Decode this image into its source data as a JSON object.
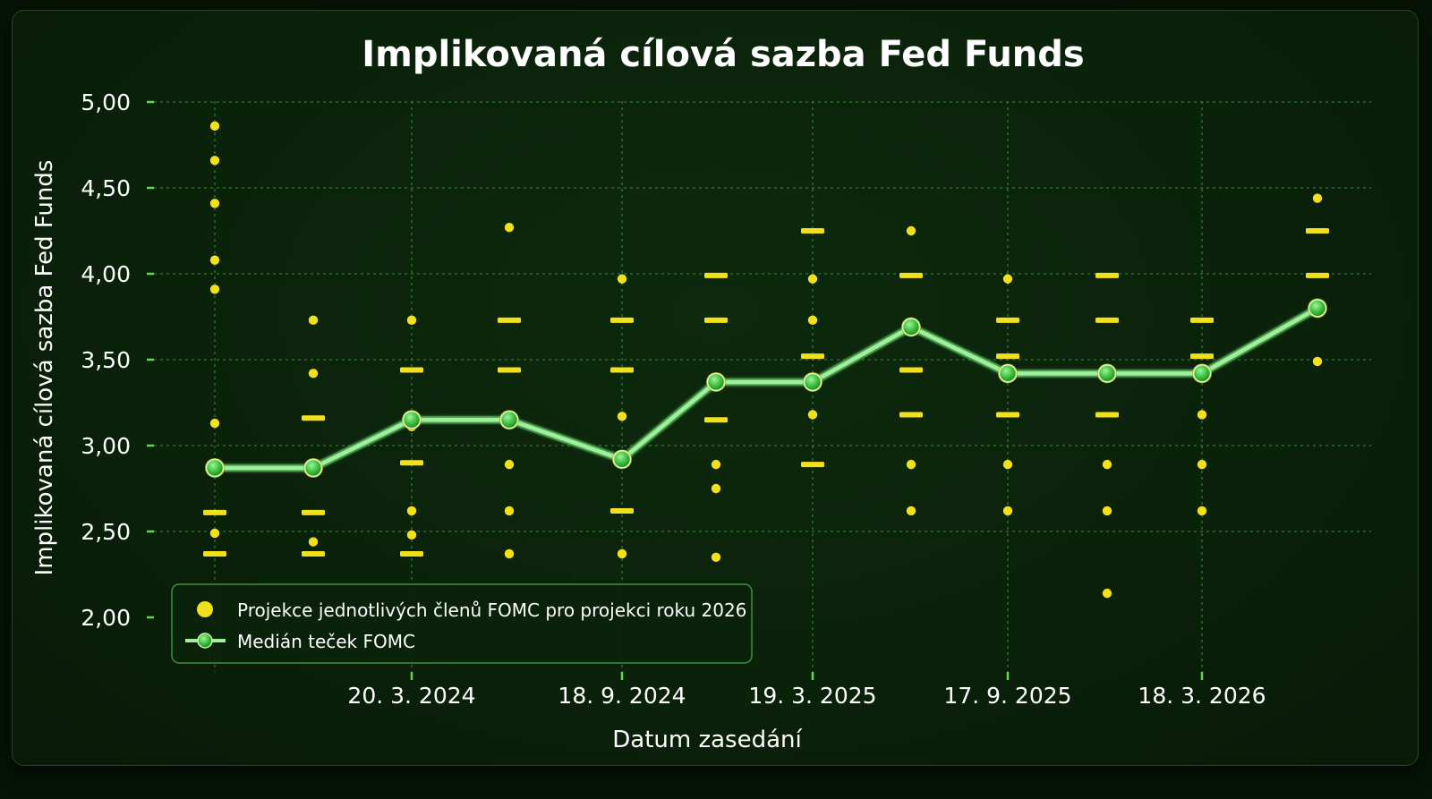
{
  "chart_data": {
    "type": "scatter",
    "title": "Implikovaná cílová sazba Fed Funds",
    "xlabel": "Datum zasedání",
    "ylabel": "Implikovaná cílová sazba Fed Funds",
    "ylim": [
      2.0,
      5.0
    ],
    "yticks": [
      "2,00",
      "2,50",
      "3,00",
      "3,50",
      "4,00",
      "4,50",
      "5,00"
    ],
    "xtick_labels": [
      "20. 3. 2024",
      "18. 9. 2024",
      "19. 3. 2025",
      "17. 9. 2025",
      "18. 3. 2026"
    ],
    "grid": true,
    "legend_position": "bottom-left",
    "colors": {
      "dots": "#f2e01a",
      "median": "#46c846",
      "line": "#9ef09e",
      "axis": "#5fd84a",
      "grid": "#2f7a2f"
    },
    "series": [
      {
        "name": "Projekce jednotlivých členů FOMC pro projekci roku 2026",
        "kind": "dots",
        "columns": [
          {
            "dots": [
              4.86,
              4.66,
              4.41,
              4.08,
              3.91,
              3.13,
              2.49
            ],
            "dashes": [
              2.61,
              2.37
            ]
          },
          {
            "dots": [
              3.73,
              3.42,
              2.44
            ],
            "dashes": [
              3.16,
              2.61,
              2.37
            ]
          },
          {
            "dots": [
              3.73,
              3.11,
              2.62,
              2.48
            ],
            "dashes": [
              3.44,
              2.9,
              2.37
            ]
          },
          {
            "dots": [
              4.27,
              2.89,
              2.62,
              2.37
            ],
            "dashes": [
              3.73,
              3.44
            ]
          },
          {
            "dots": [
              3.97,
              3.17,
              2.92,
              2.37
            ],
            "dashes": [
              3.73,
              3.44,
              2.62
            ]
          },
          {
            "dots": [
              3.39,
              2.89,
              2.75,
              2.35
            ],
            "dashes": [
              3.99,
              3.73,
              3.15
            ]
          },
          {
            "dots": [
              3.97,
              3.73,
              3.36,
              3.18
            ],
            "dashes": [
              4.25,
              3.52,
              2.89
            ]
          },
          {
            "dots": [
              4.25,
              2.89,
              2.62
            ],
            "dashes": [
              3.99,
              3.44,
              3.18
            ]
          },
          {
            "dots": [
              3.97,
              2.89,
              2.62
            ],
            "dashes": [
              3.73,
              3.52,
              3.18
            ]
          },
          {
            "dots": [
              2.89,
              2.62,
              2.14
            ],
            "dashes": [
              3.99,
              3.73,
              3.18
            ]
          },
          {
            "dots": [
              3.18,
              2.89,
              2.62
            ],
            "dashes": [
              3.73,
              3.52
            ]
          },
          {
            "dots": [
              4.44,
              3.49
            ],
            "dashes": [
              4.25,
              3.99
            ]
          }
        ]
      },
      {
        "name": "Medián teček FOMC",
        "kind": "line",
        "values": [
          2.87,
          2.87,
          3.15,
          3.15,
          2.92,
          3.37,
          3.37,
          3.69,
          3.42,
          3.42,
          3.42,
          3.8
        ]
      }
    ]
  }
}
